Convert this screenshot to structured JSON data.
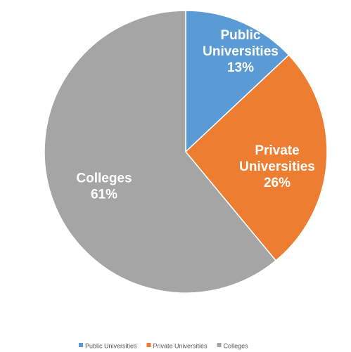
{
  "chart_data": {
    "type": "pie",
    "categories": [
      "Public Universities",
      "Private Universities",
      "Colleges"
    ],
    "values": [
      13,
      26,
      61
    ],
    "colors": [
      "#5b9bd5",
      "#ed7d31",
      "#a5a5a5"
    ],
    "slice_labels": [
      {
        "lines": [
          "Public",
          "Universities"
        ],
        "percent": "13%"
      },
      {
        "lines": [
          "Private",
          "Universities"
        ],
        "percent": "26%"
      },
      {
        "lines": [
          "Colleges"
        ],
        "percent": "61%"
      }
    ],
    "legend": {
      "position": "bottom",
      "entries": [
        "Public Universities",
        "Private Universities",
        "Colleges"
      ]
    }
  }
}
